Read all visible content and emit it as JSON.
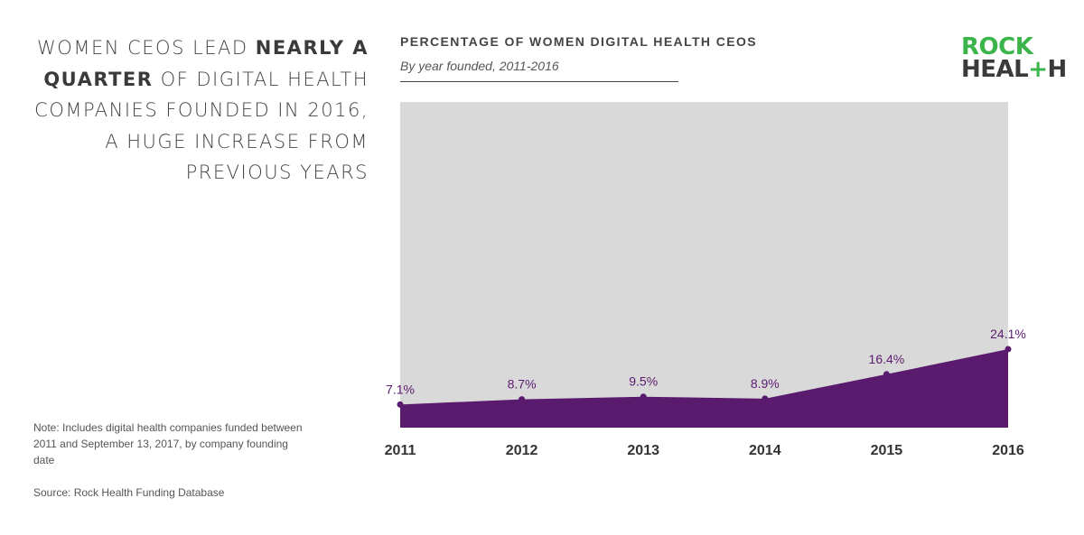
{
  "headline": {
    "parts": [
      {
        "text": "Women CEOs lead ",
        "bold": false
      },
      {
        "text": "nearly a quarter",
        "bold": true
      },
      {
        "text": " of digital health companies founded in 2016, a huge increase from previous years",
        "bold": false
      }
    ]
  },
  "note": "Note: Includes digital health companies funded between 2011 and September 13, 2017, by company founding date",
  "source": "Source: Rock Health Funding Database",
  "logo": {
    "line1": "ROCK",
    "line2_a": "HEAL",
    "line2_plus": "+",
    "line2_b": "H"
  },
  "chart_data": {
    "type": "area",
    "title": "PERCENTAGE OF WOMEN DIGITAL HEALTH CEOS",
    "subtitle": "By year founded, 2011-2016",
    "categories": [
      "2011",
      "2012",
      "2013",
      "2014",
      "2015",
      "2016"
    ],
    "values": [
      7.1,
      8.7,
      9.5,
      8.9,
      16.4,
      24.1
    ],
    "data_labels": [
      "7.1%",
      "8.7%",
      "9.5%",
      "8.9%",
      "16.4%",
      "24.1%"
    ],
    "ylim": [
      0,
      100
    ],
    "grid": false,
    "colors": {
      "fill": "#5a1a6e",
      "background": "#d9d9d9",
      "label": "#5a1a6e"
    }
  }
}
